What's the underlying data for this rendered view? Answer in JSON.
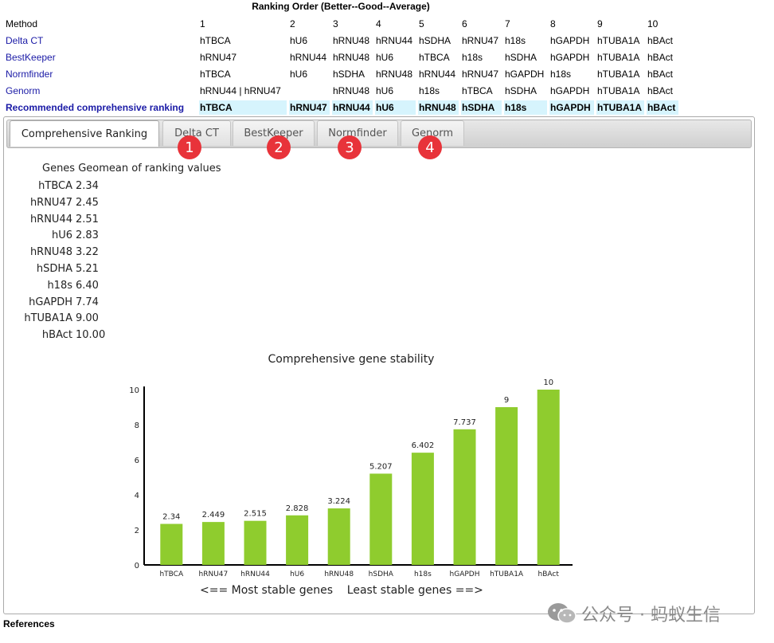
{
  "ranking": {
    "title": "Ranking Order (Better--Good--Average)",
    "header": {
      "label": "Method",
      "cols": [
        "1",
        "2",
        "3",
        "4",
        "5",
        "6",
        "7",
        "8",
        "9",
        "10"
      ]
    },
    "rows": [
      {
        "method": "Delta CT",
        "cells": [
          "hTBCA",
          "hU6",
          "hRNU48",
          "hRNU44",
          "hSDHA",
          "hRNU47",
          "h18s",
          "hGAPDH",
          "hTUBA1A",
          "hBAct"
        ]
      },
      {
        "method": "BestKeeper",
        "cells": [
          "hRNU47",
          "hRNU44",
          "hRNU48",
          "hU6",
          "hTBCA",
          "h18s",
          "hSDHA",
          "hGAPDH",
          "hTUBA1A",
          "hBAct"
        ]
      },
      {
        "method": "Normfinder",
        "cells": [
          "hTBCA",
          "hU6",
          "hSDHA",
          "hRNU48",
          "hRNU44",
          "hRNU47",
          "hGAPDH",
          "h18s",
          "hTUBA1A",
          "hBAct"
        ]
      },
      {
        "method": "Genorm",
        "cells": [
          "hRNU44 | hRNU47",
          "",
          "hRNU48",
          "hU6",
          "h18s",
          "hTBCA",
          "hSDHA",
          "hGAPDH",
          "hTUBA1A",
          "hBAct"
        ]
      },
      {
        "method": "Recommended comprehensive ranking",
        "cells": [
          "hTBCA",
          "hRNU47",
          "hRNU44",
          "hU6",
          "hRNU48",
          "hSDHA",
          "h18s",
          "hGAPDH",
          "hTUBA1A",
          "hBAct"
        ]
      }
    ]
  },
  "tabs": [
    {
      "label": "Comprehensive Ranking",
      "active": true
    },
    {
      "label": "Delta CT",
      "badge": "1"
    },
    {
      "label": "BestKeeper",
      "badge": "2"
    },
    {
      "label": "Normfinder",
      "badge": "3"
    },
    {
      "label": "Genorm",
      "badge": "4"
    }
  ],
  "geomean": {
    "header": "Genes Geomean of ranking values",
    "rows": [
      {
        "gene": "hTBCA",
        "value": "2.34"
      },
      {
        "gene": "hRNU47",
        "value": "2.45"
      },
      {
        "gene": "hRNU44",
        "value": "2.51"
      },
      {
        "gene": "hU6",
        "value": "2.83"
      },
      {
        "gene": "hRNU48",
        "value": "3.22"
      },
      {
        "gene": "hSDHA",
        "value": "5.21"
      },
      {
        "gene": "h18s",
        "value": "6.40"
      },
      {
        "gene": "hGAPDH",
        "value": "7.74"
      },
      {
        "gene": "hTUBA1A",
        "value": "9.00"
      },
      {
        "gene": "hBAct",
        "value": "10.00"
      }
    ]
  },
  "chart_data": {
    "type": "bar",
    "title": "Comprehensive gene stability",
    "categories": [
      "hTBCA",
      "hRNU47",
      "hRNU44",
      "hU6",
      "hRNU48",
      "hSDHA",
      "h18s",
      "hGAPDH",
      "hTUBA1A",
      "hBAct"
    ],
    "values": [
      2.34,
      2.449,
      2.515,
      2.828,
      3.224,
      5.207,
      6.402,
      7.737,
      9,
      10
    ],
    "value_labels": [
      "2.34",
      "2.449",
      "2.515",
      "2.828",
      "3.224",
      "5.207",
      "6.402",
      "7.737",
      "9",
      "10"
    ],
    "yticks": [
      "0",
      "2",
      "4",
      "6",
      "8",
      "10"
    ],
    "ylim": [
      0,
      10
    ],
    "bar_color": "#8fcc2e",
    "grid": false,
    "xlabel": "<== Most stable genes    Least stable genes ==>"
  },
  "footer": {
    "references": "References"
  },
  "watermark": {
    "text": "公众号 · 蚂蚁生信"
  }
}
